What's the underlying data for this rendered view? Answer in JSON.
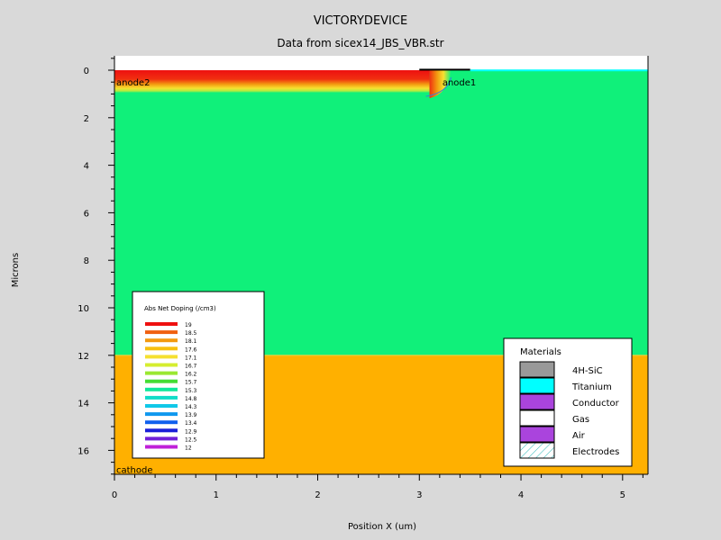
{
  "chart_data": {
    "type": "heatmap",
    "title": "VICTORYDEVICE",
    "subtitle": "Data from sicex14_JBS_VBR.str",
    "xlabel": "Position X (um)",
    "ylabel": "Microns",
    "xlim": [
      0,
      5.25
    ],
    "ylim": [
      17,
      -0.6
    ],
    "x_ticks": [
      "0",
      "1",
      "2",
      "3",
      "4",
      "5"
    ],
    "y_ticks": [
      "0",
      "2",
      "4",
      "6",
      "8",
      "10",
      "12",
      "14",
      "16"
    ],
    "electrode_labels": [
      "anode2",
      "anode1",
      "cathode"
    ],
    "doping_legend": {
      "title": "Abs Net Doping (/cm3)",
      "levels": [
        "19",
        "18.5",
        "18.1",
        "17.6",
        "17.1",
        "16.7",
        "16.2",
        "15.7",
        "15.3",
        "14.8",
        "14.3",
        "13.9",
        "13.4",
        "12.9",
        "12.5",
        "12"
      ],
      "colors": [
        "#ee1010",
        "#f06010",
        "#f39a10",
        "#f7c010",
        "#f5e030",
        "#d5ee30",
        "#9ae830",
        "#44dd33",
        "#10e89a",
        "#10dcc8",
        "#10c8e8",
        "#1098ee",
        "#1060ee",
        "#1a20d8",
        "#7020d8",
        "#c020d8"
      ]
    },
    "materials_legend": {
      "title": "Materials",
      "items": [
        {
          "label": "4H-SiC",
          "color": "#999999"
        },
        {
          "label": "Titanium",
          "color": "#00ffff"
        },
        {
          "label": "Conductor",
          "color": "#aa44dd"
        },
        {
          "label": "Gas",
          "color": "#ffffff"
        },
        {
          "label": "Air",
          "color": "#aa44dd"
        },
        {
          "label": "Electrodes",
          "color": "#aaeeee"
        }
      ]
    },
    "regions": [
      {
        "name": "drift",
        "x": [
          0,
          5.25
        ],
        "y": [
          0,
          12
        ],
        "doping_log": 15.7
      },
      {
        "name": "substrate",
        "x": [
          0,
          5.25
        ],
        "y": [
          12,
          17
        ],
        "doping_log": 18.8
      },
      {
        "name": "p-implant",
        "x": [
          0,
          3.1
        ],
        "y": [
          0,
          0.95
        ],
        "doping_log": 19
      },
      {
        "name": "titanium",
        "x": [
          3.5,
          5.25
        ],
        "y": [
          -0.03,
          0
        ],
        "material": "Titanium"
      },
      {
        "name": "anode1-contact",
        "x": [
          3.0,
          3.5
        ],
        "y": [
          -0.06,
          0
        ],
        "material": "Electrodes"
      }
    ]
  }
}
